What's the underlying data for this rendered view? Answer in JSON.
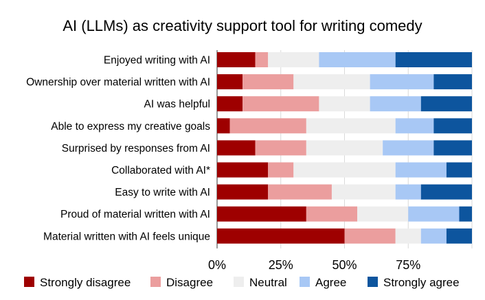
{
  "chart_data": {
    "type": "bar",
    "orientation": "horizontal",
    "stacked": true,
    "title": "AI (LLMs) as creativity support tool for writing comedy",
    "xlim": [
      0,
      100
    ],
    "x_ticks": [
      "0%",
      "25%",
      "50%",
      "75%"
    ],
    "grid": true,
    "legend_position": "bottom",
    "categories": [
      "Enjoyed writing with AI",
      "Ownership over material written with AI",
      "AI was helpful",
      "Able to express my creative goals",
      "Surprised by responses from AI",
      "Collaborated with AI*",
      "Easy to write with AI",
      "Proud of material written with AI",
      "Material written with AI feels unique"
    ],
    "series": [
      {
        "name": "Strongly disagree",
        "color": "#9e0000",
        "values": [
          15,
          10,
          10,
          5,
          15,
          20,
          20,
          35,
          50
        ]
      },
      {
        "name": "Disagree",
        "color": "#eb9e9e",
        "values": [
          5,
          20,
          30,
          30,
          20,
          10,
          25,
          20,
          20
        ]
      },
      {
        "name": "Neutral",
        "color": "#eeeeee",
        "values": [
          20,
          30,
          20,
          35,
          30,
          40,
          25,
          20,
          10
        ]
      },
      {
        "name": "Agree",
        "color": "#a8c8f5",
        "values": [
          30,
          25,
          20,
          15,
          20,
          20,
          10,
          20,
          10
        ]
      },
      {
        "name": "Strongly agree",
        "color": "#0d559e",
        "values": [
          30,
          15,
          20,
          15,
          15,
          10,
          20,
          5,
          10
        ]
      }
    ]
  }
}
